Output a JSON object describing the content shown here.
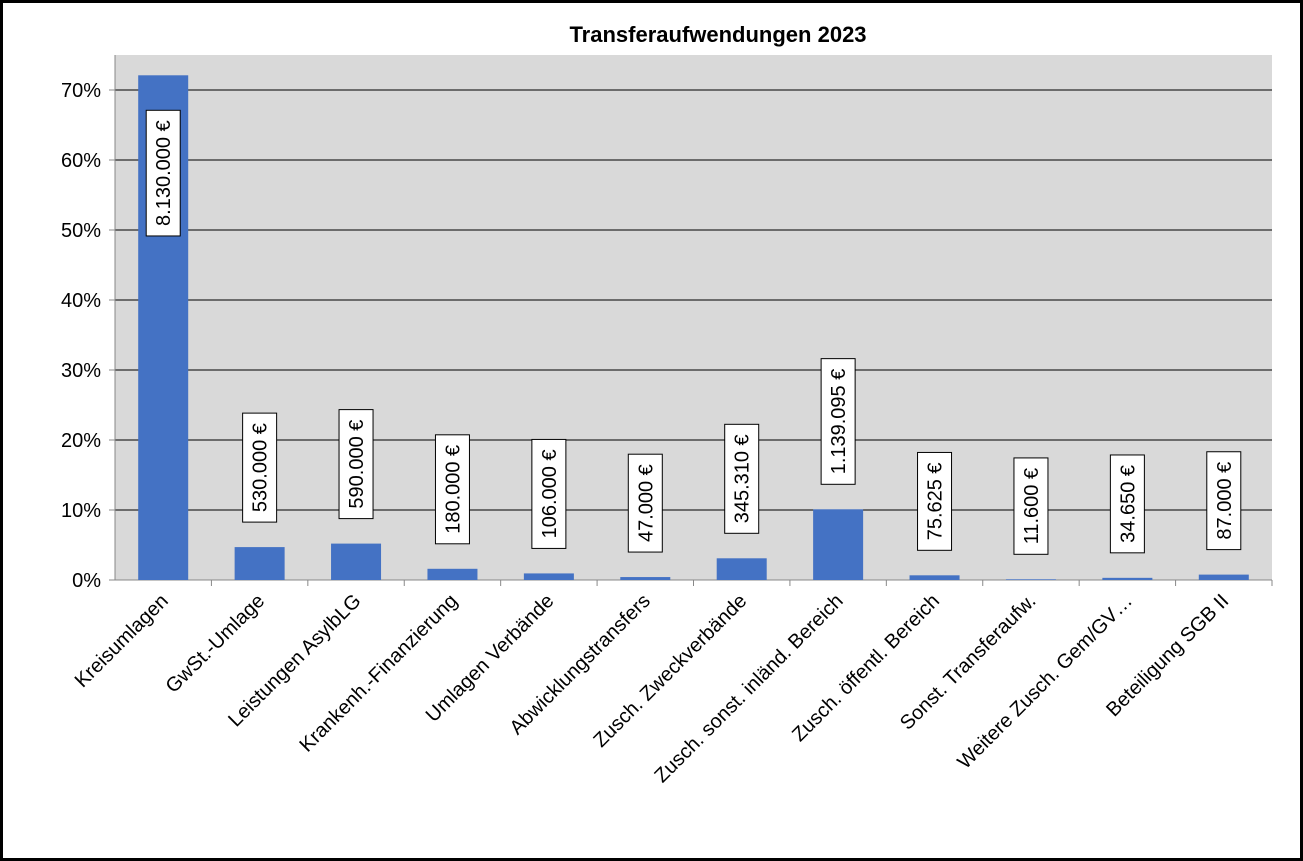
{
  "chart_data": {
    "type": "bar",
    "title": "Transferaufwendungen 2023",
    "categories": [
      "Kreisumlagen",
      "GwSt.-Umlage",
      "Leistungen AsylbLG",
      "Krankenh.-Finanzierung",
      "Umlagen Verbände",
      "Abwicklungstransfers",
      "Zusch. Zweckverbände",
      "Zusch. sonst. inländ. Bereich",
      "Zusch. öffentl. Bereich",
      "Sonst. Transferaufw.",
      "Weitere Zusch. Gem/GV…",
      "Beteiligung SGB II"
    ],
    "values": [
      72.1,
      4.7,
      5.2,
      1.6,
      0.94,
      0.42,
      3.1,
      10.1,
      0.67,
      0.1,
      0.31,
      0.77
    ],
    "amount_labels": [
      "8.130.000 €",
      "530.000 €",
      "590.000 €",
      "180.000 €",
      "106.000 €",
      "47.000 €",
      "345.310 €",
      "1.139.095 €",
      "75.625 €",
      "11.600 €",
      "34.650 €",
      "87.000 €"
    ],
    "color": "#4472c4",
    "ylim": [
      0,
      75
    ],
    "yticks": [
      {
        "value": 0,
        "label": "0%"
      },
      {
        "value": 10,
        "label": "10%"
      },
      {
        "value": 20,
        "label": "20%"
      },
      {
        "value": 30,
        "label": "30%"
      },
      {
        "value": 40,
        "label": "40%"
      },
      {
        "value": 50,
        "label": "50%"
      },
      {
        "value": 60,
        "label": "60%"
      },
      {
        "value": 70,
        "label": "70%"
      }
    ],
    "grid": true
  }
}
